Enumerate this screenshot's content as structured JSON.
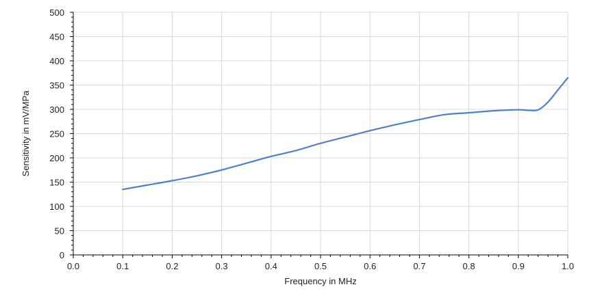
{
  "chart_data": {
    "type": "line",
    "title": "",
    "xlabel": "Frequency in MHz",
    "ylabel": "Sensitivity in mV/MPa",
    "xlim": [
      0.0,
      1.0
    ],
    "ylim": [
      0,
      500
    ],
    "x_ticks": [
      "0.0",
      "0.1",
      "0.2",
      "0.3",
      "0.4",
      "0.5",
      "0.6",
      "0.7",
      "0.8",
      "0.9",
      "1.0"
    ],
    "y_ticks": [
      "0",
      "50",
      "100",
      "150",
      "200",
      "250",
      "300",
      "350",
      "400",
      "450",
      "500"
    ],
    "grid": true,
    "series": [
      {
        "x": [
          0.1,
          0.15,
          0.2,
          0.25,
          0.3,
          0.35,
          0.4,
          0.45,
          0.5,
          0.55,
          0.6,
          0.65,
          0.7,
          0.75,
          0.8,
          0.85,
          0.9,
          0.92,
          0.94,
          0.96,
          0.98,
          1.0
        ],
        "y": [
          135,
          144,
          153,
          163,
          175,
          189,
          203,
          215,
          230,
          243,
          256,
          268,
          279,
          289,
          293,
          297,
          299,
          298,
          299,
          315,
          340,
          365
        ],
        "color": "#4f81c4"
      }
    ]
  }
}
